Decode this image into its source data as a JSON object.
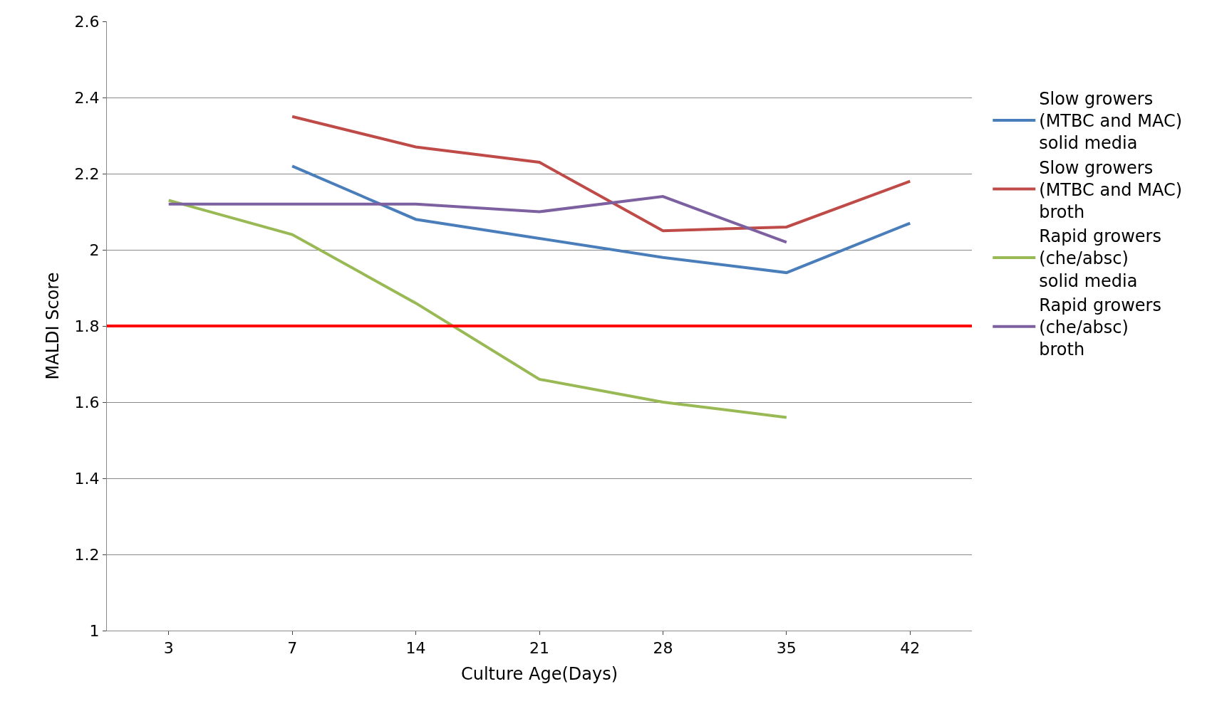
{
  "chart_data": {
    "type": "line",
    "xlabel": "Culture Age(Days)",
    "ylabel": "MALDI Score",
    "categories": [
      "3",
      "7",
      "14",
      "21",
      "28",
      "35",
      "42"
    ],
    "series": [
      {
        "name": "Slow growers (MTBC and MAC) solid media",
        "color": "#4a7ebb",
        "values": [
          null,
          2.22,
          2.08,
          2.03,
          1.98,
          1.94,
          2.07
        ]
      },
      {
        "name": "Slow growers (MTBC and MAC) broth",
        "color": "#be4b48",
        "values": [
          null,
          2.35,
          2.27,
          2.23,
          2.05,
          2.06,
          2.18
        ]
      },
      {
        "name": "Rapid growers (che/absc) solid media",
        "color": "#98b954",
        "values": [
          2.13,
          2.04,
          1.86,
          1.66,
          1.6,
          1.56,
          null
        ]
      },
      {
        "name": "Rapid growers (che/absc) broth",
        "color": "#7d60a0",
        "values": [
          2.12,
          2.12,
          2.12,
          2.1,
          2.14,
          2.02,
          null
        ]
      }
    ],
    "ref_lines": [
      {
        "axis": "y",
        "value": 1.8,
        "color": "#ff0000"
      }
    ],
    "ylim": [
      1,
      2.6
    ],
    "yticks": [
      1,
      1.2,
      1.4,
      1.6,
      1.8,
      2,
      2.2,
      2.4,
      2.6
    ],
    "grid": "y",
    "legend": "right",
    "marker": "none",
    "line_style": "solid"
  }
}
